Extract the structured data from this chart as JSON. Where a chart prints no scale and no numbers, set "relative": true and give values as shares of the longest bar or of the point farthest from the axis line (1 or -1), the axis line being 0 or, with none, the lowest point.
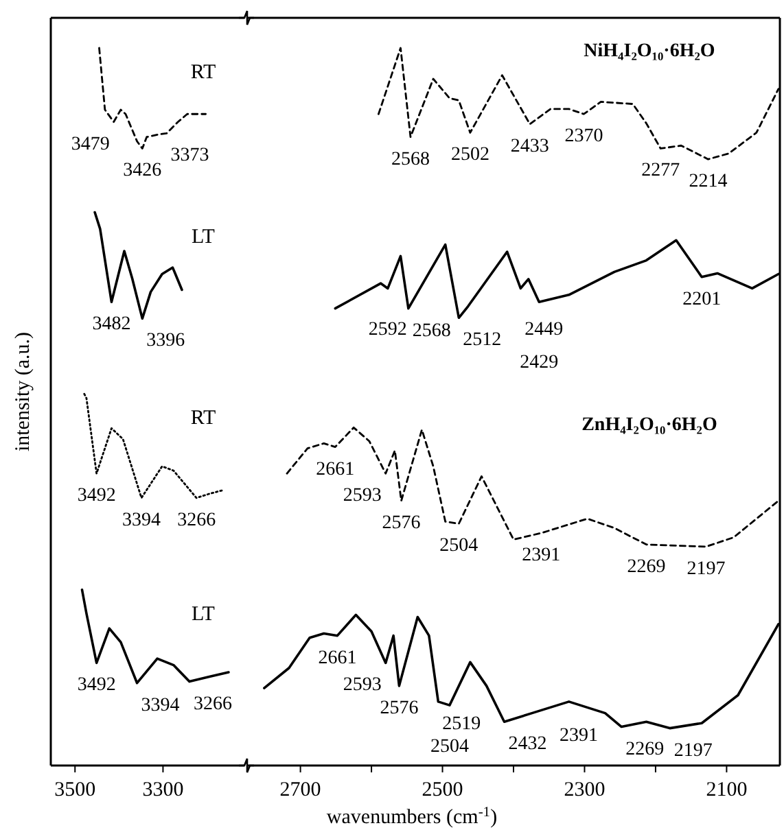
{
  "chart_data": [
    {
      "type": "line",
      "relative": true,
      "ylabel": "intensity (a.u.)",
      "xlim": [
        3555,
        3115
      ],
      "xticks": [
        3500,
        3300
      ],
      "series": [
        {
          "name": "RT",
          "color": "#000000",
          "line_style": "dashed",
          "x": [
            3445,
            3432,
            3412,
            3396,
            3385,
            3359,
            3347,
            3337,
            3307,
            3292,
            3266,
            3245,
            3224,
            3203
          ],
          "values": [
            1.0,
            0.914,
            0.897,
            0.914,
            0.908,
            0.87,
            0.86,
            0.876,
            0.88,
            0.881,
            0.897,
            0.908,
            0.908,
            0.908
          ]
        },
        {
          "name": "LT",
          "color": "#000000",
          "line_style": "solid",
          "x": [
            3455,
            3443,
            3417,
            3388,
            3370,
            3347,
            3328,
            3302,
            3278,
            3257
          ],
          "values": [
            0.771,
            0.748,
            0.646,
            0.717,
            0.679,
            0.623,
            0.66,
            0.685,
            0.694,
            0.663
          ]
        },
        {
          "name": "RT",
          "color": "#000000",
          "line_style": "dotted",
          "x": [
            3479,
            3474,
            3451,
            3417,
            3391,
            3349,
            3302,
            3276,
            3224,
            3193,
            3162
          ],
          "values": [
            0.518,
            0.512,
            0.407,
            0.47,
            0.455,
            0.373,
            0.417,
            0.411,
            0.373,
            0.379,
            0.384
          ]
        },
        {
          "name": "LT",
          "color": "#000000",
          "line_style": "solid",
          "x": [
            3484,
            3474,
            3451,
            3422,
            3396,
            3359,
            3313,
            3276,
            3240,
            3193,
            3151
          ],
          "values": [
            0.245,
            0.212,
            0.143,
            0.191,
            0.172,
            0.115,
            0.149,
            0.14,
            0.117,
            0.124,
            0.13
          ]
        }
      ],
      "annotations": [
        {
          "text": "3479",
          "x": 3412,
          "y": 0.897
        },
        {
          "text": "3426",
          "x": 3347,
          "y": 0.86
        },
        {
          "text": "3373",
          "x": 3292,
          "y": 0.881
        },
        {
          "text": "3482",
          "x": 3417,
          "y": 0.646
        },
        {
          "text": "3396",
          "x": 3347,
          "y": 0.623
        },
        {
          "text": "3492",
          "x": 3451,
          "y": 0.407
        },
        {
          "text": "3394",
          "x": 3349,
          "y": 0.373
        },
        {
          "text": "3266",
          "x": 3224,
          "y": 0.373
        },
        {
          "text": "3492",
          "x": 3451,
          "y": 0.143
        },
        {
          "text": "3394",
          "x": 3359,
          "y": 0.115
        },
        {
          "text": "3266",
          "x": 3240,
          "y": 0.117
        }
      ]
    },
    {
      "type": "line",
      "relative": true,
      "xlabel": "wavenumbers (cm$^{-1}$)",
      "xlim": [
        2775,
        2025
      ],
      "xticks": [
        2700,
        {
          "value": 2600,
          "label": null
        },
        2500,
        {
          "value": 2400,
          "label": null
        },
        2300,
        {
          "value": 2200,
          "label": null
        },
        2100
      ],
      "series": [
        {
          "color": "#000000",
          "line_style": "dashed",
          "x": [
            2590,
            2559,
            2545,
            2513,
            2490,
            2477,
            2461,
            2416,
            2377,
            2348,
            2322,
            2301,
            2277,
            2232,
            2213,
            2193,
            2164,
            2126,
            2097,
            2058,
            2027
          ],
          "values": [
            0.908,
            1.0,
            0.876,
            0.957,
            0.93,
            0.927,
            0.882,
            0.962,
            0.894,
            0.915,
            0.915,
            0.908,
            0.925,
            0.922,
            0.895,
            0.86,
            0.864,
            0.845,
            0.853,
            0.882,
            0.943
          ]
        },
        {
          "color": "#000000",
          "line_style": "solid",
          "x": [
            2651,
            2587,
            2577,
            2559,
            2548,
            2496,
            2477,
            2464,
            2409,
            2390,
            2379,
            2364,
            2322,
            2258,
            2213,
            2171,
            2135,
            2113,
            2064,
            2027
          ],
          "values": [
            0.637,
            0.672,
            0.665,
            0.71,
            0.637,
            0.726,
            0.624,
            0.64,
            0.716,
            0.665,
            0.678,
            0.646,
            0.656,
            0.688,
            0.704,
            0.732,
            0.681,
            0.686,
            0.665,
            0.685
          ]
        },
        {
          "color": "#000000",
          "line_style": "dashed",
          "x": [
            2719,
            2690,
            2667,
            2651,
            2625,
            2603,
            2580,
            2567,
            2558,
            2529,
            2513,
            2496,
            2477,
            2445,
            2400,
            2361,
            2296,
            2258,
            2213,
            2129,
            2090,
            2027
          ],
          "values": [
            0.407,
            0.442,
            0.449,
            0.444,
            0.471,
            0.452,
            0.407,
            0.439,
            0.369,
            0.468,
            0.417,
            0.34,
            0.337,
            0.403,
            0.315,
            0.324,
            0.344,
            0.331,
            0.308,
            0.305,
            0.318,
            0.369
          ]
        },
        {
          "color": "#000000",
          "line_style": "solid",
          "x": [
            2751,
            2716,
            2687,
            2667,
            2648,
            2622,
            2600,
            2580,
            2569,
            2561,
            2535,
            2519,
            2506,
            2490,
            2461,
            2438,
            2413,
            2374,
            2322,
            2271,
            2248,
            2213,
            2180,
            2135,
            2084,
            2027
          ],
          "values": [
            0.108,
            0.136,
            0.178,
            0.184,
            0.181,
            0.21,
            0.187,
            0.143,
            0.181,
            0.111,
            0.207,
            0.181,
            0.089,
            0.084,
            0.144,
            0.111,
            0.061,
            0.073,
            0.089,
            0.073,
            0.054,
            0.061,
            0.052,
            0.059,
            0.098,
            0.197
          ]
        }
      ],
      "annotations": [
        "NiH₄I₂O₁₀·6H₂O",
        {
          "text": "2568",
          "x": 2545,
          "y": 0.876
        },
        {
          "text": "2502",
          "x": 2461,
          "y": 0.882
        },
        {
          "text": "2433",
          "x": 2377,
          "y": 0.894
        },
        {
          "text": "2370",
          "x": 2301,
          "y": 0.908
        },
        {
          "text": "2277",
          "x": 2193,
          "y": 0.86
        },
        {
          "text": "2214",
          "x": 2126,
          "y": 0.845
        },
        {
          "text": "2592",
          "x": 2577,
          "y": 0.665
        },
        {
          "text": "2568",
          "x": 2548,
          "y": 0.637
        },
        {
          "text": "2512",
          "x": 2477,
          "y": 0.624
        },
        {
          "text": "2449",
          "x": 2390,
          "y": 0.665
        },
        {
          "text": "2429",
          "x": 2364,
          "y": 0.646
        },
        {
          "text": "2201",
          "x": 2135,
          "y": 0.681
        },
        "ZnH₄I₂O₁₀·6H₂O",
        {
          "text": "2661",
          "x": 2651,
          "y": 0.444
        },
        {
          "text": "2593",
          "x": 2580,
          "y": 0.407
        },
        {
          "text": "2576",
          "x": 2558,
          "y": 0.369
        },
        {
          "text": "2504",
          "x": 2477,
          "y": 0.337
        },
        {
          "text": "2391",
          "x": 2361,
          "y": 0.324
        },
        {
          "text": "2269",
          "x": 2213,
          "y": 0.308
        },
        {
          "text": "2197",
          "x": 2129,
          "y": 0.305
        },
        {
          "text": "2661",
          "x": 2648,
          "y": 0.181
        },
        {
          "text": "2593",
          "x": 2580,
          "y": 0.143
        },
        {
          "text": "2576",
          "x": 2561,
          "y": 0.111
        },
        {
          "text": "2519",
          "x": 2506,
          "y": 0.089
        },
        {
          "text": "2504",
          "x": 2490,
          "y": 0.084
        },
        {
          "text": "2432",
          "x": 2413,
          "y": 0.061
        },
        {
          "text": "2391",
          "x": 2374,
          "y": 0.073
        },
        {
          "text": "2269",
          "x": 2248,
          "y": 0.054
        },
        {
          "text": "2197",
          "x": 2180,
          "y": 0.052
        }
      ]
    }
  ]
}
